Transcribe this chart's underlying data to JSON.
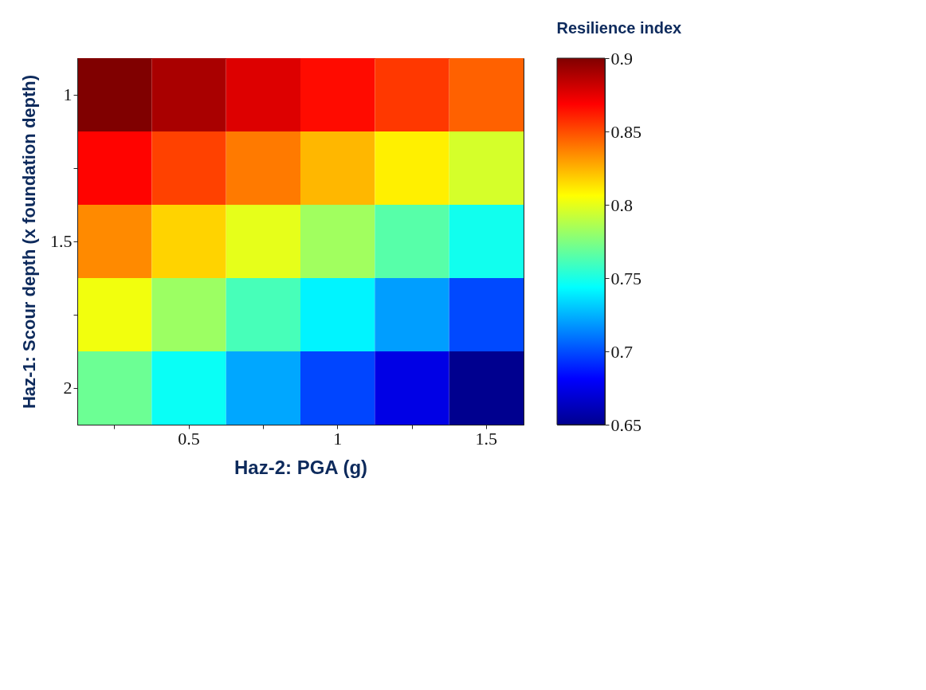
{
  "chart_data": {
    "type": "heatmap",
    "xlabel": "Haz-2: PGA (g)",
    "ylabel": "Haz-1: Scour depth (x foundation depth)",
    "clabel": "Resilience index",
    "categories": [
      null,
      "0.5",
      null,
      "1",
      null,
      "1.5"
    ],
    "y_categories": [
      "1",
      null,
      "1.5",
      null,
      "2"
    ],
    "cells": [
      [
        0.9,
        0.89,
        0.877,
        0.866,
        0.855,
        0.845
      ],
      [
        0.868,
        0.853,
        0.839,
        0.824,
        0.81,
        0.796
      ],
      [
        0.835,
        0.817,
        0.8,
        0.783,
        0.765,
        0.748
      ],
      [
        0.803,
        0.782,
        0.761,
        0.741,
        0.72,
        0.699
      ],
      [
        0.77,
        0.746,
        0.722,
        0.698,
        0.674,
        0.65
      ]
    ],
    "clim": [
      0.65,
      0.9
    ],
    "cticks": [
      0.65,
      0.7,
      0.75,
      0.8,
      0.85,
      0.9
    ]
  }
}
